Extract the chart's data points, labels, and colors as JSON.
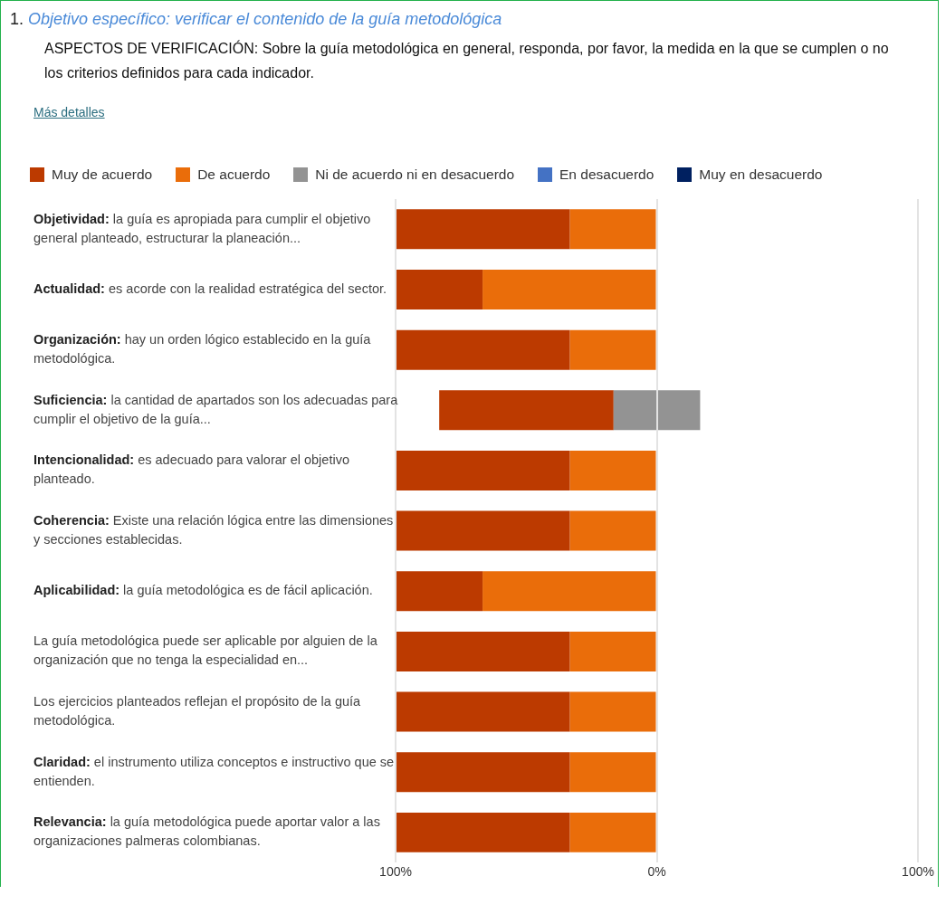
{
  "chart_data": {
    "type": "bar",
    "orientation": "horizontal",
    "title": "Objetivo específico: verificar el contenido de la guía metodológica",
    "subtitle": "ASPECTOS DE VERIFICACIÓN: Sobre la guía metodológica en general, responda, por favor, la medida en la que se cumplen o no los criterios definidos para cada indicador.",
    "annotations": [
      "1.",
      "Más detalles"
    ],
    "categories": [
      "Objetividad: la guía es apropiada para cumplir el objetivo general planteado, estructurar la planeación...",
      "Actualidad: es acorde con la realidad estratégica del sector.",
      "Organización: hay un orden lógico establecido en la guía metodológica.",
      "Suficiencia: la cantidad de apartados son los adecuadas para cumplir el objetivo de la guía...",
      "Intencionalidad: es adecuado para valorar el objetivo planteado.",
      "Coherencia: Existe una relación lógica entre las dimensiones y secciones establecidas.",
      "Aplicabilidad: la guía metodológica es de fácil aplicación.",
      "La guía metodológica puede ser aplicable por alguien de la organización que no tenga la especialidad en...",
      "Los ejercicios planteados reflejan el propósito de la guía metodológica.",
      "Claridad: el instrumento utiliza conceptos e instructivo que se entienden.",
      "Relevancia: la guía metodológica puede aportar valor a las organizaciones palmeras colombianas."
    ],
    "series": [
      {
        "name": "Muy de acuerdo",
        "color": "#bc3a00",
        "values": [
          66.7,
          33.3,
          66.7,
          66.7,
          66.7,
          66.7,
          33.3,
          66.7,
          66.7,
          66.7,
          66.7
        ],
        "base": [
          -100,
          -100,
          -100,
          -83.3,
          -100,
          -100,
          -100,
          -100,
          -100,
          -100,
          -100
        ]
      },
      {
        "name": "De acuerdo",
        "color": "#ea6d0a",
        "values": [
          33.3,
          66.7,
          33.3,
          null,
          33.3,
          33.3,
          66.7,
          33.3,
          33.3,
          33.3,
          33.3
        ],
        "base": [
          -33.3,
          -66.7,
          -33.3,
          null,
          -33.3,
          -33.3,
          -66.7,
          -33.3,
          -33.3,
          -33.3,
          -33.3
        ]
      },
      {
        "name": "Ni de acuerdo ni en desacuerdo",
        "color": "#939393",
        "values": [
          null,
          null,
          null,
          33.3,
          null,
          null,
          null,
          null,
          null,
          null,
          null
        ],
        "base": [
          null,
          null,
          null,
          -16.7,
          null,
          null,
          null,
          null,
          null,
          null,
          null
        ]
      },
      {
        "name": "En desacuerdo",
        "color": "#4472c4",
        "values": [
          null,
          null,
          null,
          null,
          null,
          null,
          null,
          null,
          null,
          null,
          null
        ]
      },
      {
        "name": "Muy en desacuerdo",
        "color": "#002060",
        "values": [
          null,
          null,
          null,
          null,
          null,
          null,
          null,
          null,
          null,
          null,
          null
        ]
      }
    ],
    "xlim": [
      -100,
      100
    ],
    "xticks": [
      {
        "value": -100,
        "label": "100%"
      },
      {
        "value": 0,
        "label": "0%"
      },
      {
        "value": 100,
        "label": "100%"
      }
    ],
    "grid": "x",
    "legend": "top"
  }
}
